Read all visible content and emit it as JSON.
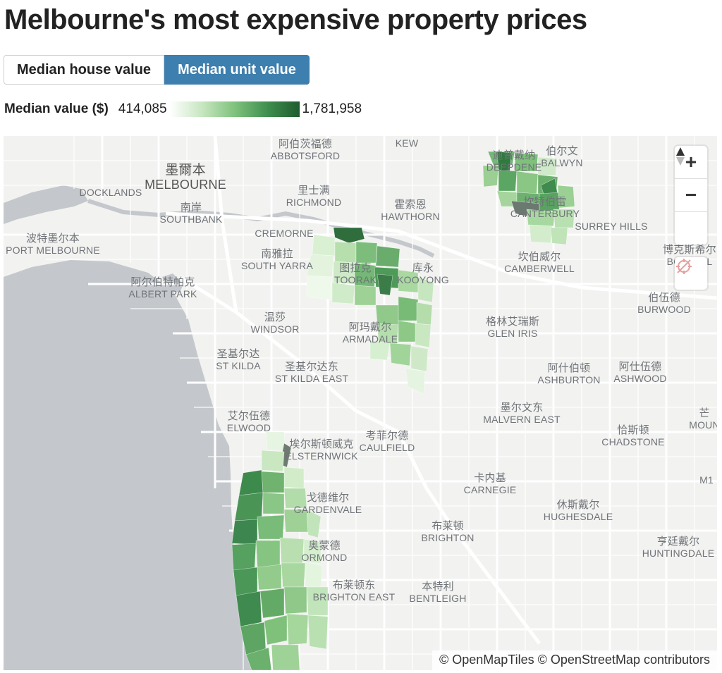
{
  "header": {
    "title": "Melbourne's most expensive property prices"
  },
  "tabs": [
    {
      "label": "Median house value",
      "active": false
    },
    {
      "label": "Median unit value",
      "active": true
    }
  ],
  "legend": {
    "label": "Median value ($)",
    "min": "414,085",
    "max": "1,781,958",
    "colors": [
      "#ffffff",
      "#c7e6c0",
      "#7fc27d",
      "#3f8f4f",
      "#1f5c2e"
    ]
  },
  "map": {
    "labels": [
      {
        "zh": "阿伯茨福德",
        "en": "ABBOTSFORD"
      },
      {
        "zh": "",
        "en": "KEW"
      },
      {
        "zh": "伯尔文",
        "en": "BALWYN"
      },
      {
        "zh": "墨爾本",
        "en": "MELBOURNE"
      },
      {
        "zh": "",
        "en": "DOCKLANDS"
      },
      {
        "zh": "里士满",
        "en": "RICHMOND"
      },
      {
        "zh": "霍索恩",
        "en": "HAWTHORN"
      },
      {
        "zh": "迪普戴纳",
        "en": "DEEPDENE"
      },
      {
        "zh": "坎特伯雷",
        "en": "CANTERBURY"
      },
      {
        "zh": "南岸",
        "en": "SOUTHBANK"
      },
      {
        "zh": "",
        "en": "CREMORNE"
      },
      {
        "zh": "",
        "en": "SURREY HILLS"
      },
      {
        "zh": "波特墨尔本",
        "en": "PORT MELBOURNE"
      },
      {
        "zh": "南雅拉",
        "en": "SOUTH YARRA"
      },
      {
        "zh": "图拉克",
        "en": "TOORAK"
      },
      {
        "zh": "库永",
        "en": "KOOYONG"
      },
      {
        "zh": "坎伯威尔",
        "en": "CAMBERWELL"
      },
      {
        "zh": "博克斯希尔",
        "en": "BOX HILL"
      },
      {
        "zh": "阿尔伯特帕克",
        "en": "ALBERT PARK"
      },
      {
        "zh": "伯伍德",
        "en": "BURWOOD"
      },
      {
        "zh": "温莎",
        "en": "WINDSOR"
      },
      {
        "zh": "阿玛戴尔",
        "en": "ARMADALE"
      },
      {
        "zh": "格林艾瑞斯",
        "en": "GLEN IRIS"
      },
      {
        "zh": "圣基尔达",
        "en": "ST KILDA"
      },
      {
        "zh": "圣基尔达东",
        "en": "ST KILDA EAST"
      },
      {
        "zh": "阿什伯顿",
        "en": "ASHBURTON"
      },
      {
        "zh": "阿仕伍德",
        "en": "ASHWOOD"
      },
      {
        "zh": "墨尔文东",
        "en": "MALVERN EAST"
      },
      {
        "zh": "艾尔伍德",
        "en": "ELWOOD"
      },
      {
        "zh": "恰斯顿",
        "en": "CHADSTONE"
      },
      {
        "zh": "埃尔斯顿威克",
        "en": "ELSTERNWICK"
      },
      {
        "zh": "考菲尔德",
        "en": "CAULFIELD"
      },
      {
        "zh": "卡内基",
        "en": "CARNEGIE"
      },
      {
        "zh": "戈德维尔",
        "en": "GARDENVALE"
      },
      {
        "zh": "休斯戴尔",
        "en": "HUGHESDALE"
      },
      {
        "zh": "布莱顿",
        "en": "BRIGHTON"
      },
      {
        "zh": "奥蒙德",
        "en": "ORMOND"
      },
      {
        "zh": "亨廷戴尔",
        "en": "HUNTINGDALE"
      },
      {
        "zh": "布莱顿东",
        "en": "BRIGHTON EAST"
      },
      {
        "zh": "本特利",
        "en": "BENTLEIGH"
      },
      {
        "zh": "芒",
        "en": "MOUN"
      },
      {
        "zh": "",
        "en": "M1"
      }
    ],
    "controls": {
      "zoom_in": "+",
      "zoom_out": "−"
    },
    "attribution": "© OpenMapTiles © OpenStreetMap contributors"
  }
}
